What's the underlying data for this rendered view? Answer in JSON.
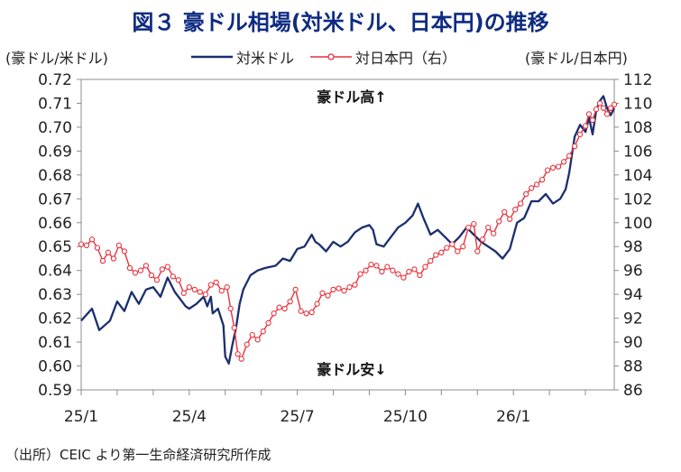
{
  "title": "図３ 豪ドル相場(対米ドル、日本円)の推移",
  "source": "（出所）CEIC より第一生命経済研究所作成",
  "colors": {
    "usd": "#1b2f6e",
    "jpy": "#e8323c",
    "title": "#0e2b82"
  },
  "chart_data": {
    "type": "line",
    "title": "図３ 豪ドル相場(対米ドル、日本円)の推移",
    "ylabel_left": "(豪ドル/米ドル)",
    "ylabel_right": "(豪ドル/日本円)",
    "ylim_left": [
      0.59,
      0.72
    ],
    "ylim_right": [
      86,
      112
    ],
    "yticks_left": [
      "0.72",
      "0.71",
      "0.70",
      "0.69",
      "0.68",
      "0.67",
      "0.66",
      "0.65",
      "0.64",
      "0.63",
      "0.62",
      "0.61",
      "0.60",
      "0.59"
    ],
    "yticks_right": [
      "112",
      "110",
      "108",
      "106",
      "104",
      "102",
      "100",
      "98",
      "96",
      "94",
      "92",
      "90",
      "88",
      "86"
    ],
    "xticks": [
      "25/1",
      "25/4",
      "25/7",
      "25/10",
      "26/1"
    ],
    "x_range_months": [
      0,
      14.8
    ],
    "annotations": {
      "up": "豪ドル高↑",
      "down": "豪ドル安↓"
    },
    "grid": false,
    "series": [
      {
        "name": "対米ドル",
        "axis": "left",
        "marker": "none",
        "points": [
          [
            0,
            0.619
          ],
          [
            0.3,
            0.624
          ],
          [
            0.5,
            0.615
          ],
          [
            0.8,
            0.619
          ],
          [
            1.0,
            0.627
          ],
          [
            1.2,
            0.623
          ],
          [
            1.4,
            0.631
          ],
          [
            1.6,
            0.626
          ],
          [
            1.8,
            0.632
          ],
          [
            2.0,
            0.633
          ],
          [
            2.2,
            0.629
          ],
          [
            2.4,
            0.637
          ],
          [
            2.6,
            0.631
          ],
          [
            2.8,
            0.627
          ],
          [
            2.9,
            0.625
          ],
          [
            3.0,
            0.624
          ],
          [
            3.2,
            0.626
          ],
          [
            3.4,
            0.629
          ],
          [
            3.5,
            0.625
          ],
          [
            3.6,
            0.629
          ],
          [
            3.65,
            0.622
          ],
          [
            3.8,
            0.624
          ],
          [
            3.95,
            0.617
          ],
          [
            4.0,
            0.604
          ],
          [
            4.1,
            0.601
          ],
          [
            4.2,
            0.609
          ],
          [
            4.3,
            0.616
          ],
          [
            4.4,
            0.626
          ],
          [
            4.5,
            0.632
          ],
          [
            4.7,
            0.638
          ],
          [
            4.9,
            0.64
          ],
          [
            5.1,
            0.641
          ],
          [
            5.4,
            0.642
          ],
          [
            5.6,
            0.645
          ],
          [
            5.8,
            0.644
          ],
          [
            6.0,
            0.649
          ],
          [
            6.2,
            0.65
          ],
          [
            6.4,
            0.655
          ],
          [
            6.5,
            0.652
          ],
          [
            6.6,
            0.651
          ],
          [
            6.8,
            0.648
          ],
          [
            7.0,
            0.652
          ],
          [
            7.2,
            0.65
          ],
          [
            7.4,
            0.652
          ],
          [
            7.6,
            0.656
          ],
          [
            7.8,
            0.658
          ],
          [
            8.0,
            0.659
          ],
          [
            8.1,
            0.657
          ],
          [
            8.2,
            0.651
          ],
          [
            8.4,
            0.65
          ],
          [
            8.6,
            0.654
          ],
          [
            8.8,
            0.658
          ],
          [
            9.0,
            0.66
          ],
          [
            9.2,
            0.663
          ],
          [
            9.35,
            0.668
          ],
          [
            9.5,
            0.662
          ],
          [
            9.7,
            0.655
          ],
          [
            9.9,
            0.657
          ],
          [
            10.1,
            0.654
          ],
          [
            10.3,
            0.651
          ],
          [
            10.5,
            0.654
          ],
          [
            10.7,
            0.658
          ],
          [
            10.9,
            0.655
          ],
          [
            11.1,
            0.652
          ],
          [
            11.3,
            0.65
          ],
          [
            11.5,
            0.648
          ],
          [
            11.7,
            0.645
          ],
          [
            11.9,
            0.649
          ],
          [
            12.1,
            0.66
          ],
          [
            12.3,
            0.662
          ],
          [
            12.5,
            0.669
          ],
          [
            12.7,
            0.669
          ],
          [
            12.9,
            0.672
          ],
          [
            13.1,
            0.668
          ],
          [
            13.3,
            0.67
          ],
          [
            13.45,
            0.674
          ],
          [
            13.55,
            0.681
          ],
          [
            13.7,
            0.696
          ],
          [
            13.85,
            0.701
          ],
          [
            14.0,
            0.698
          ],
          [
            14.1,
            0.704
          ],
          [
            14.2,
            0.697
          ],
          [
            14.3,
            0.707
          ],
          [
            14.4,
            0.711
          ],
          [
            14.5,
            0.713
          ],
          [
            14.6,
            0.708
          ],
          [
            14.7,
            0.705
          ],
          [
            14.8,
            0.708
          ]
        ]
      },
      {
        "name": "対日本円（右）",
        "axis": "right",
        "marker": "circle",
        "points": [
          [
            0,
            98.2
          ],
          [
            0.15,
            98.1
          ],
          [
            0.3,
            98.6
          ],
          [
            0.45,
            97.9
          ],
          [
            0.6,
            96.8
          ],
          [
            0.75,
            97.5
          ],
          [
            0.9,
            97.0
          ],
          [
            1.05,
            98.1
          ],
          [
            1.2,
            97.6
          ],
          [
            1.35,
            96.2
          ],
          [
            1.5,
            95.8
          ],
          [
            1.65,
            96.0
          ],
          [
            1.8,
            96.4
          ],
          [
            1.95,
            95.6
          ],
          [
            2.1,
            95.2
          ],
          [
            2.25,
            96.1
          ],
          [
            2.4,
            96.3
          ],
          [
            2.55,
            95.5
          ],
          [
            2.7,
            95.2
          ],
          [
            2.85,
            94.1
          ],
          [
            3.0,
            94.6
          ],
          [
            3.15,
            94.4
          ],
          [
            3.3,
            94.2
          ],
          [
            3.45,
            94.0
          ],
          [
            3.6,
            94.8
          ],
          [
            3.75,
            95.0
          ],
          [
            3.9,
            94.3
          ],
          [
            4.05,
            94.6
          ],
          [
            4.15,
            92.8
          ],
          [
            4.25,
            91.2
          ],
          [
            4.35,
            89.0
          ],
          [
            4.45,
            88.6
          ],
          [
            4.6,
            89.8
          ],
          [
            4.75,
            90.6
          ],
          [
            4.9,
            90.2
          ],
          [
            5.05,
            90.9
          ],
          [
            5.2,
            91.6
          ],
          [
            5.35,
            92.4
          ],
          [
            5.5,
            92.9
          ],
          [
            5.65,
            92.8
          ],
          [
            5.8,
            93.4
          ],
          [
            5.95,
            94.4
          ],
          [
            6.1,
            92.6
          ],
          [
            6.25,
            92.4
          ],
          [
            6.4,
            92.5
          ],
          [
            6.55,
            93.2
          ],
          [
            6.7,
            94.1
          ],
          [
            6.85,
            93.9
          ],
          [
            7.0,
            94.4
          ],
          [
            7.15,
            94.5
          ],
          [
            7.3,
            94.3
          ],
          [
            7.45,
            94.6
          ],
          [
            7.6,
            94.8
          ],
          [
            7.75,
            95.7
          ],
          [
            7.9,
            96.0
          ],
          [
            8.05,
            96.5
          ],
          [
            8.2,
            96.4
          ],
          [
            8.35,
            95.9
          ],
          [
            8.5,
            96.3
          ],
          [
            8.65,
            96.0
          ],
          [
            8.8,
            95.7
          ],
          [
            8.95,
            95.4
          ],
          [
            9.1,
            95.9
          ],
          [
            9.25,
            96.1
          ],
          [
            9.4,
            95.6
          ],
          [
            9.55,
            96.3
          ],
          [
            9.7,
            96.8
          ],
          [
            9.85,
            97.3
          ],
          [
            10.0,
            97.5
          ],
          [
            10.15,
            97.9
          ],
          [
            10.3,
            98.2
          ],
          [
            10.45,
            97.6
          ],
          [
            10.6,
            98.0
          ],
          [
            10.75,
            99.6
          ],
          [
            10.9,
            99.9
          ],
          [
            11.0,
            97.6
          ],
          [
            11.15,
            98.6
          ],
          [
            11.3,
            99.6
          ],
          [
            11.45,
            99.1
          ],
          [
            11.6,
            100.1
          ],
          [
            11.75,
            100.9
          ],
          [
            11.9,
            100.3
          ],
          [
            12.05,
            101.1
          ],
          [
            12.2,
            101.6
          ],
          [
            12.35,
            102.4
          ],
          [
            12.5,
            102.9
          ],
          [
            12.65,
            103.2
          ],
          [
            12.8,
            103.6
          ],
          [
            12.95,
            104.4
          ],
          [
            13.1,
            104.6
          ],
          [
            13.25,
            104.7
          ],
          [
            13.4,
            105.1
          ],
          [
            13.55,
            105.6
          ],
          [
            13.7,
            106.4
          ],
          [
            13.85,
            107.4
          ],
          [
            14.0,
            108.1
          ],
          [
            14.1,
            109.1
          ],
          [
            14.2,
            108.6
          ],
          [
            14.3,
            109.5
          ],
          [
            14.4,
            110.0
          ],
          [
            14.5,
            109.6
          ],
          [
            14.6,
            109.1
          ],
          [
            14.7,
            109.6
          ],
          [
            14.8,
            109.9
          ]
        ]
      }
    ]
  }
}
